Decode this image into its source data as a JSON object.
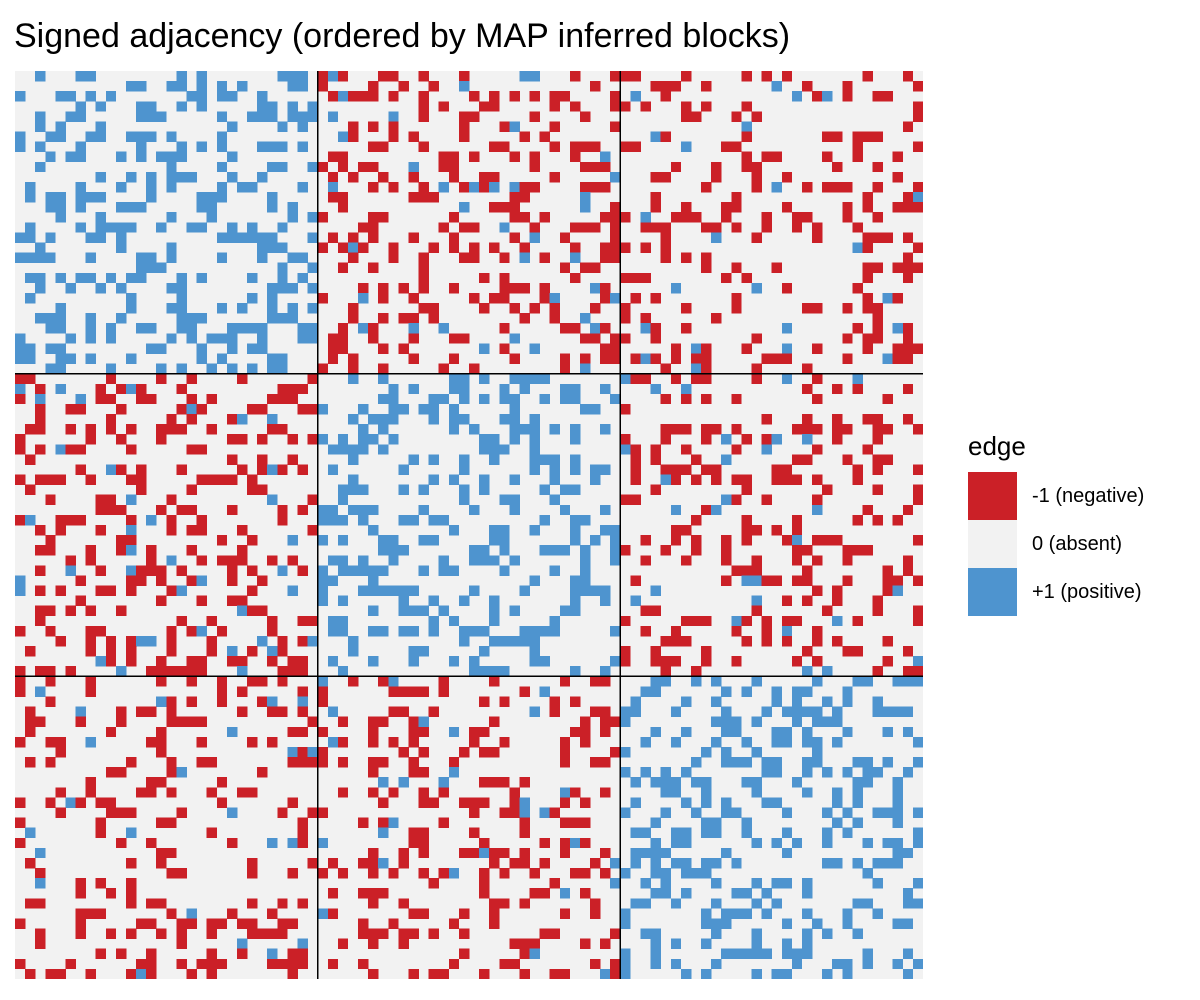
{
  "chart_data": {
    "type": "heatmap",
    "title": "Signed adjacency (ordered by MAP inferred blocks)",
    "xlabel": "",
    "ylabel": "",
    "n_nodes": 90,
    "block_sizes": [
      30,
      30,
      30
    ],
    "axis_ticks": false,
    "grid": false,
    "block_boundaries": true,
    "value_levels": [
      -1,
      0,
      1
    ],
    "legend": {
      "title": "edge",
      "position": "right",
      "entries": [
        {
          "value": -1,
          "label": "-1 (negative)",
          "color": "#CB2027"
        },
        {
          "value": 0,
          "label": "0 (absent)",
          "color": "#F2F2F2"
        },
        {
          "value": 1,
          "label": "+1 (positive)",
          "color": "#4E94CF"
        }
      ]
    },
    "block_edge_density": [
      [
        {
          "positive": 0.35,
          "negative": 0.0
        },
        {
          "positive": 0.04,
          "negative": 0.26
        },
        {
          "positive": 0.03,
          "negative": 0.2
        }
      ],
      [
        {
          "positive": 0.04,
          "negative": 0.26
        },
        {
          "positive": 0.35,
          "negative": 0.0
        },
        {
          "positive": 0.04,
          "negative": 0.24
        }
      ],
      [
        {
          "positive": 0.03,
          "negative": 0.2
        },
        {
          "positive": 0.04,
          "negative": 0.24
        },
        {
          "positive": 0.33,
          "negative": 0.0
        }
      ]
    ],
    "sample_seed": 12345
  }
}
